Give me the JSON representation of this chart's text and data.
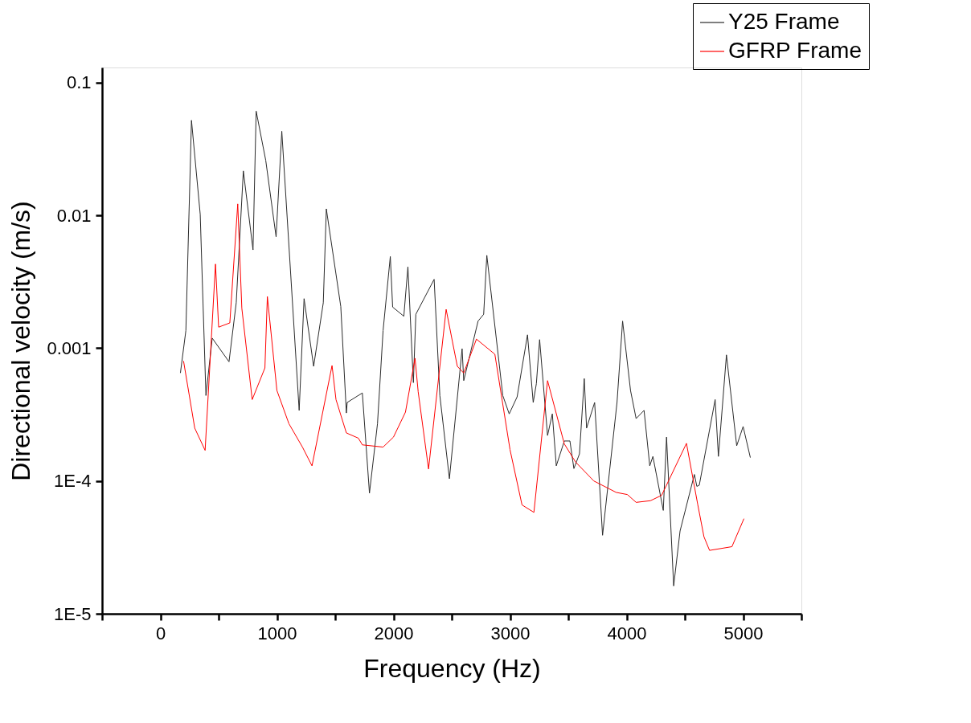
{
  "chart_data": {
    "type": "line",
    "xlabel": "Frequency (Hz)",
    "ylabel": "Directional velocity (m/s)",
    "log": true,
    "grid": false,
    "legend": "top right",
    "marker": "none",
    "line_style": "solid",
    "xlim": [
      -500,
      5500
    ],
    "xticks": [
      {
        "value": -500,
        "label": null
      },
      0,
      {
        "value": 500,
        "label": null
      },
      1000,
      {
        "value": 1500,
        "label": null
      },
      2000,
      {
        "value": 2500,
        "label": null
      },
      3000,
      {
        "value": 3500,
        "label": null
      },
      4000,
      {
        "value": 4500,
        "label": null
      },
      5000,
      {
        "value": 5500,
        "label": null
      }
    ],
    "ylim": [
      1e-05,
      0.13
    ],
    "yticks": [
      {
        "value": 1e-05,
        "label": "1E-5"
      },
      {
        "value": 0.0001,
        "label": "1E-4"
      },
      0.001,
      0.01,
      0.1
    ],
    "series": [
      {
        "name": "Y25 Frame",
        "color": "#2b2b2b",
        "x": [
          172,
          219,
          267,
          342,
          391,
          445,
          589,
          651,
          712,
          795,
          822,
          904,
          993,
          1042,
          1191,
          1233,
          1315,
          1398,
          1424,
          1548,
          1596,
          1603,
          1733,
          1794,
          1863,
          1911,
          1973,
          1993,
          2089,
          2124,
          2171,
          2192,
          2349,
          2398,
          2480,
          2589,
          2603,
          2726,
          2774,
          2801,
          2938,
          2993,
          3061,
          3150,
          3199,
          3226,
          3254,
          3322,
          3363,
          3397,
          3466,
          3514,
          3548,
          3596,
          3637,
          3657,
          3726,
          3794,
          3918,
          3966,
          4034,
          4082,
          4150,
          4199,
          4226,
          4315,
          4343,
          4404,
          4459,
          4582,
          4603,
          4624,
          4760,
          4788,
          4857,
          4945,
          5000,
          5062
        ],
        "values": [
          0.00065,
          0.00136,
          0.052,
          0.0102,
          0.00044,
          0.00119,
          0.00079,
          0.0022,
          0.0216,
          0.0055,
          0.061,
          0.026,
          0.0069,
          0.043,
          0.00034,
          0.00236,
          0.00073,
          0.0022,
          0.0112,
          0.00206,
          0.000325,
          0.00039,
          0.00046,
          8.1e-05,
          0.00027,
          0.00136,
          0.0049,
          0.00204,
          0.00174,
          0.0041,
          0.00055,
          0.0018,
          0.0033,
          0.00044,
          0.000104,
          0.00099,
          0.00057,
          0.0016,
          0.0018,
          0.005,
          0.00044,
          0.00032,
          0.00043,
          0.00126,
          0.00039,
          0.00054,
          0.00116,
          0.00022,
          0.00032,
          0.00013,
          0.0002,
          0.0002,
          0.000124,
          0.00016,
          0.00059,
          0.00025,
          0.00039,
          3.9e-05,
          0.00039,
          0.0016,
          0.00048,
          0.000295,
          0.00034,
          0.00013,
          0.000153,
          6e-05,
          0.000214,
          1.62e-05,
          4.2e-05,
          0.000112,
          9.1e-05,
          9.3e-05,
          0.00041,
          0.000153,
          0.00089,
          0.000184,
          0.000257,
          0.00015
        ]
      },
      {
        "name": "GFRP Frame",
        "color": "#ff0000",
        "x": [
          199,
          295,
          384,
          473,
          500,
          596,
          664,
          699,
          788,
          897,
          918,
          1000,
          1103,
          1219,
          1301,
          1473,
          1507,
          1596,
          1699,
          1733,
          1911,
          2000,
          2103,
          2185,
          2212,
          2301,
          2452,
          2507,
          2548,
          2603,
          2712,
          2870,
          3000,
          3103,
          3205,
          3322,
          3466,
          3562,
          3719,
          3911,
          4007,
          4082,
          4205,
          4301,
          4514,
          4610,
          4664,
          4712,
          4904,
          5007
        ],
        "values": [
          0.0008,
          0.00025,
          0.00017,
          0.0043,
          0.00144,
          0.00155,
          0.0122,
          0.002,
          0.00041,
          0.00071,
          0.00245,
          0.00048,
          0.00027,
          0.00018,
          0.00013,
          0.00074,
          0.00041,
          0.00023,
          0.00021,
          0.000187,
          0.00018,
          0.000214,
          0.00033,
          0.00084,
          0.00047,
          0.000123,
          0.00196,
          0.00111,
          0.00073,
          0.00065,
          0.00117,
          0.0009,
          0.000172,
          6.6e-05,
          5.8e-05,
          0.00057,
          0.00019,
          0.000139,
          0.0001,
          8.2e-05,
          7.9e-05,
          6.9e-05,
          7.1e-05,
          7.8e-05,
          0.000192,
          6.7e-05,
          3.8e-05,
          3e-05,
          3.2e-05,
          5.2e-05
        ]
      }
    ]
  }
}
